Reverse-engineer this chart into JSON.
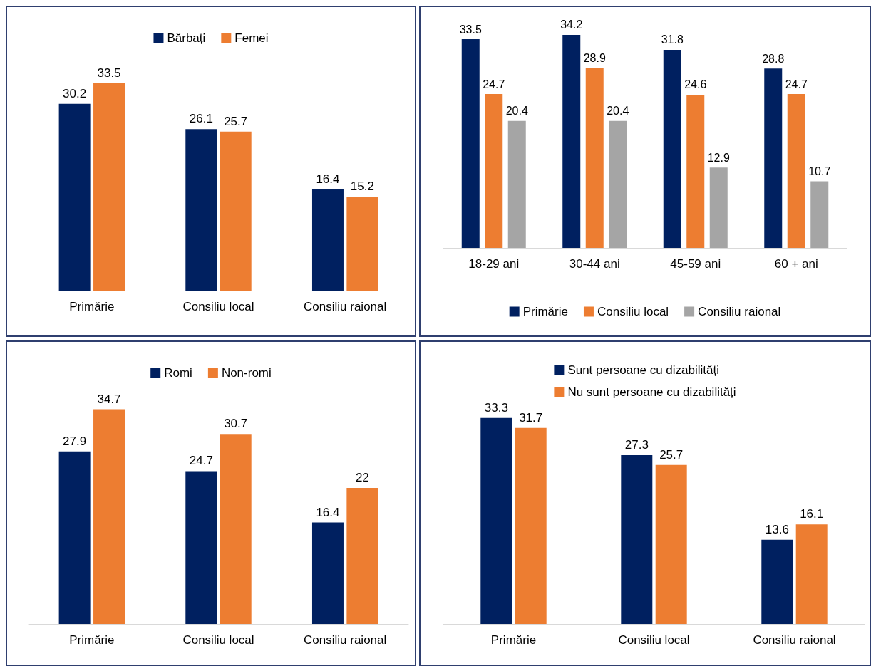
{
  "chart_data": [
    {
      "type": "bar",
      "categories": [
        "Primărie",
        "Consiliu local",
        "Consiliu raional"
      ],
      "series": [
        {
          "name": "Bărbați",
          "color": "#002060",
          "values": [
            30.2,
            26.1,
            16.4
          ]
        },
        {
          "name": "Femei",
          "color": "#ed7d31",
          "values": [
            33.5,
            25.7,
            15.2
          ]
        }
      ],
      "data_labels": true,
      "legend": "top"
    },
    {
      "type": "bar",
      "categories": [
        "18-29 ani",
        "30-44 ani",
        "45-59 ani",
        "60 + ani"
      ],
      "series": [
        {
          "name": "Primărie",
          "color": "#002060",
          "values": [
            33.5,
            34.2,
            31.8,
            28.8
          ]
        },
        {
          "name": "Consiliu local",
          "color": "#ed7d31",
          "values": [
            24.7,
            28.9,
            24.6,
            24.7
          ]
        },
        {
          "name": "Consiliu raional",
          "color": "#a5a5a5",
          "values": [
            20.4,
            20.4,
            12.9,
            10.7
          ]
        }
      ],
      "data_labels": true,
      "legend": "bottom"
    },
    {
      "type": "bar",
      "categories": [
        "Primărie",
        "Consiliu local",
        "Consiliu raional"
      ],
      "series": [
        {
          "name": "Romi",
          "color": "#002060",
          "values": [
            27.9,
            24.7,
            16.4
          ]
        },
        {
          "name": "Non-romi",
          "color": "#ed7d31",
          "values": [
            34.7,
            30.7,
            22
          ]
        }
      ],
      "data_labels": true,
      "legend": "top"
    },
    {
      "type": "bar",
      "categories": [
        "Primărie",
        "Consiliu local",
        "Consiliu raional"
      ],
      "series": [
        {
          "name": "Sunt persoane cu dizabilități",
          "color": "#002060",
          "values": [
            33.3,
            27.3,
            13.6
          ]
        },
        {
          "name": "Nu sunt persoane cu dizabilități",
          "color": "#ed7d31",
          "values": [
            31.7,
            25.7,
            16.1
          ]
        }
      ],
      "data_labels": true,
      "legend": "top"
    }
  ]
}
